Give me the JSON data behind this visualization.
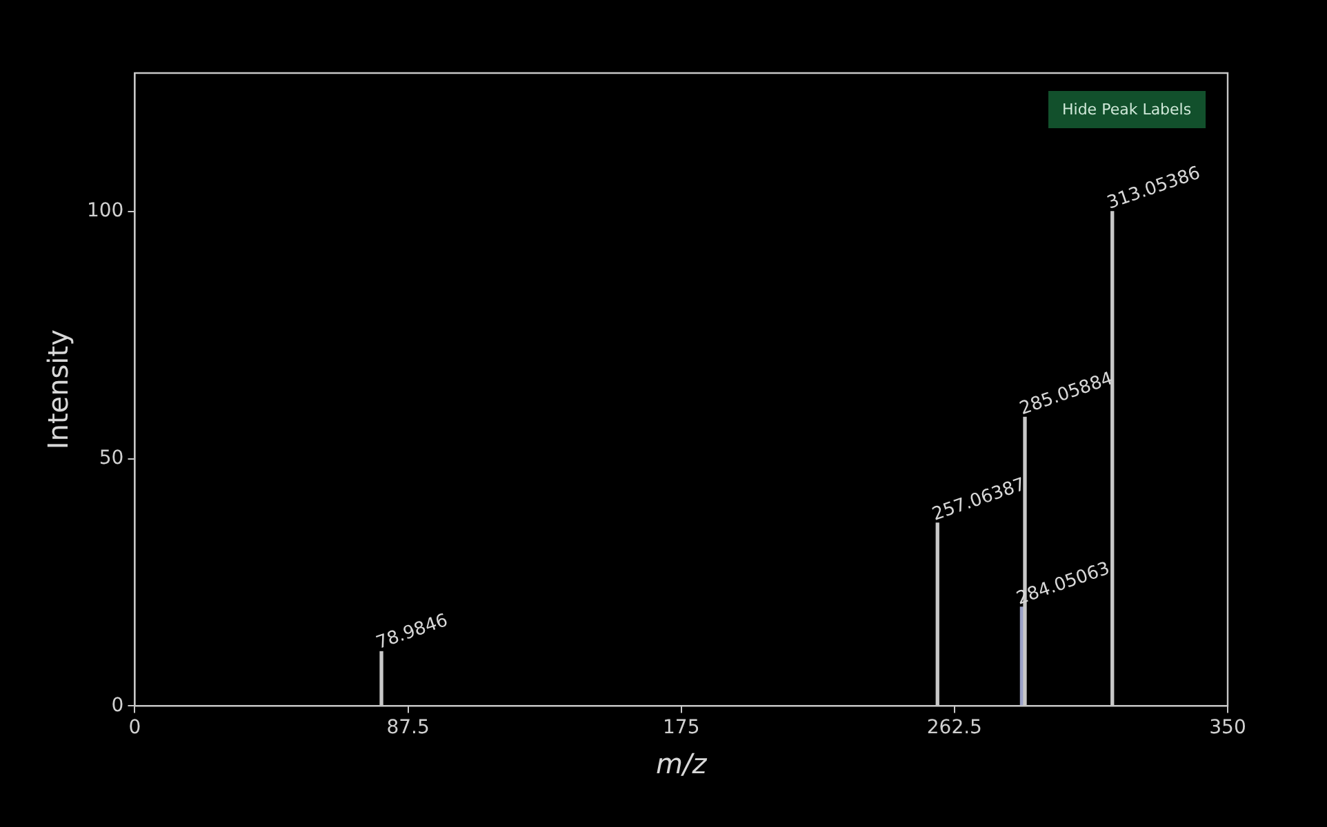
{
  "chart_data": {
    "type": "bar",
    "xlabel": "m/z",
    "ylabel": "Intensity",
    "x": [
      78.9846,
      257.06387,
      284.05063,
      285.05884,
      313.05386
    ],
    "values": [
      11,
      37,
      20,
      58.4,
      100
    ],
    "colors": [
      "#c8c8c8",
      "#c8c8c8",
      "#9ca2c8",
      "#c8c8c8",
      "#c8c8c8"
    ],
    "xlim": [
      0,
      350
    ],
    "xticks": [
      0,
      87.5,
      175,
      262.5,
      350
    ],
    "ylim": [
      0,
      128
    ],
    "yticks": [
      0,
      50,
      100
    ],
    "annotations": [
      "Hide Peak Labels",
      {
        "text": "78.9846",
        "x": 78.9846,
        "y": 11
      },
      {
        "text": "257.06387",
        "x": 257.06387,
        "y": 37
      },
      {
        "text": "284.05063",
        "x": 284.05063,
        "y": 20
      },
      {
        "text": "285.05884",
        "x": 285.05884,
        "y": 58.4
      },
      {
        "text": "313.05386",
        "x": 313.05386,
        "y": 100
      }
    ],
    "legend": false
  }
}
